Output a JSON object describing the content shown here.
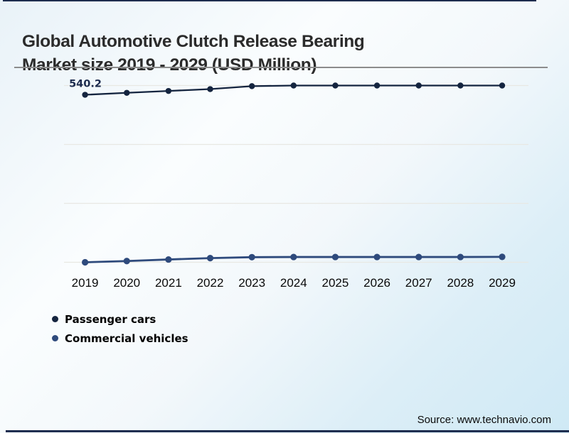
{
  "header": {
    "title_line1": "Global Automotive Clutch Release Bearing",
    "title_line2": "Market size 2019 - 2029 (USD Million)"
  },
  "footer": {
    "source": "Source: www.technavio.com"
  },
  "colors": {
    "border_bar": "#1d2c4e",
    "title_text": "#2b2b2b",
    "gridline": "#e8e8e3",
    "axis_label_text": "#0a0a0a",
    "annotation_text": "#1c2b4e"
  },
  "chart_data": {
    "type": "line",
    "title": "Global Automotive Clutch Release Bearing Market size 2019 - 2029 (USD Million)",
    "xlabel": "",
    "ylabel": "",
    "categories": [
      "2019",
      "2020",
      "2021",
      "2022",
      "2023",
      "2024",
      "2025",
      "2026",
      "2027",
      "2028",
      "2029"
    ],
    "series": [
      {
        "name": "Passenger cars",
        "color": "#14243f",
        "marker_radius": 4.2,
        "line_width": 2.3,
        "values": [
          540.2,
          546.5,
          552.5,
          558.5,
          568,
          570,
          570,
          570,
          570,
          570,
          570
        ]
      },
      {
        "name": "Commercial vehicles",
        "color": "#2e4a7c",
        "marker_radius": 4.6,
        "line_width": 2.8,
        "values": [
          0,
          4,
          9,
          13.5,
          16.5,
          17,
          17,
          17,
          17,
          17,
          17.5
        ]
      }
    ],
    "annotations": [
      {
        "series_index": 0,
        "point_index": 0,
        "text": "540.2"
      }
    ],
    "ylim": [
      0,
      570
    ],
    "grid": "horizontal",
    "gridline_count": 4,
    "y_axis_labels_shown": false,
    "legend_position": "bottom-left"
  }
}
